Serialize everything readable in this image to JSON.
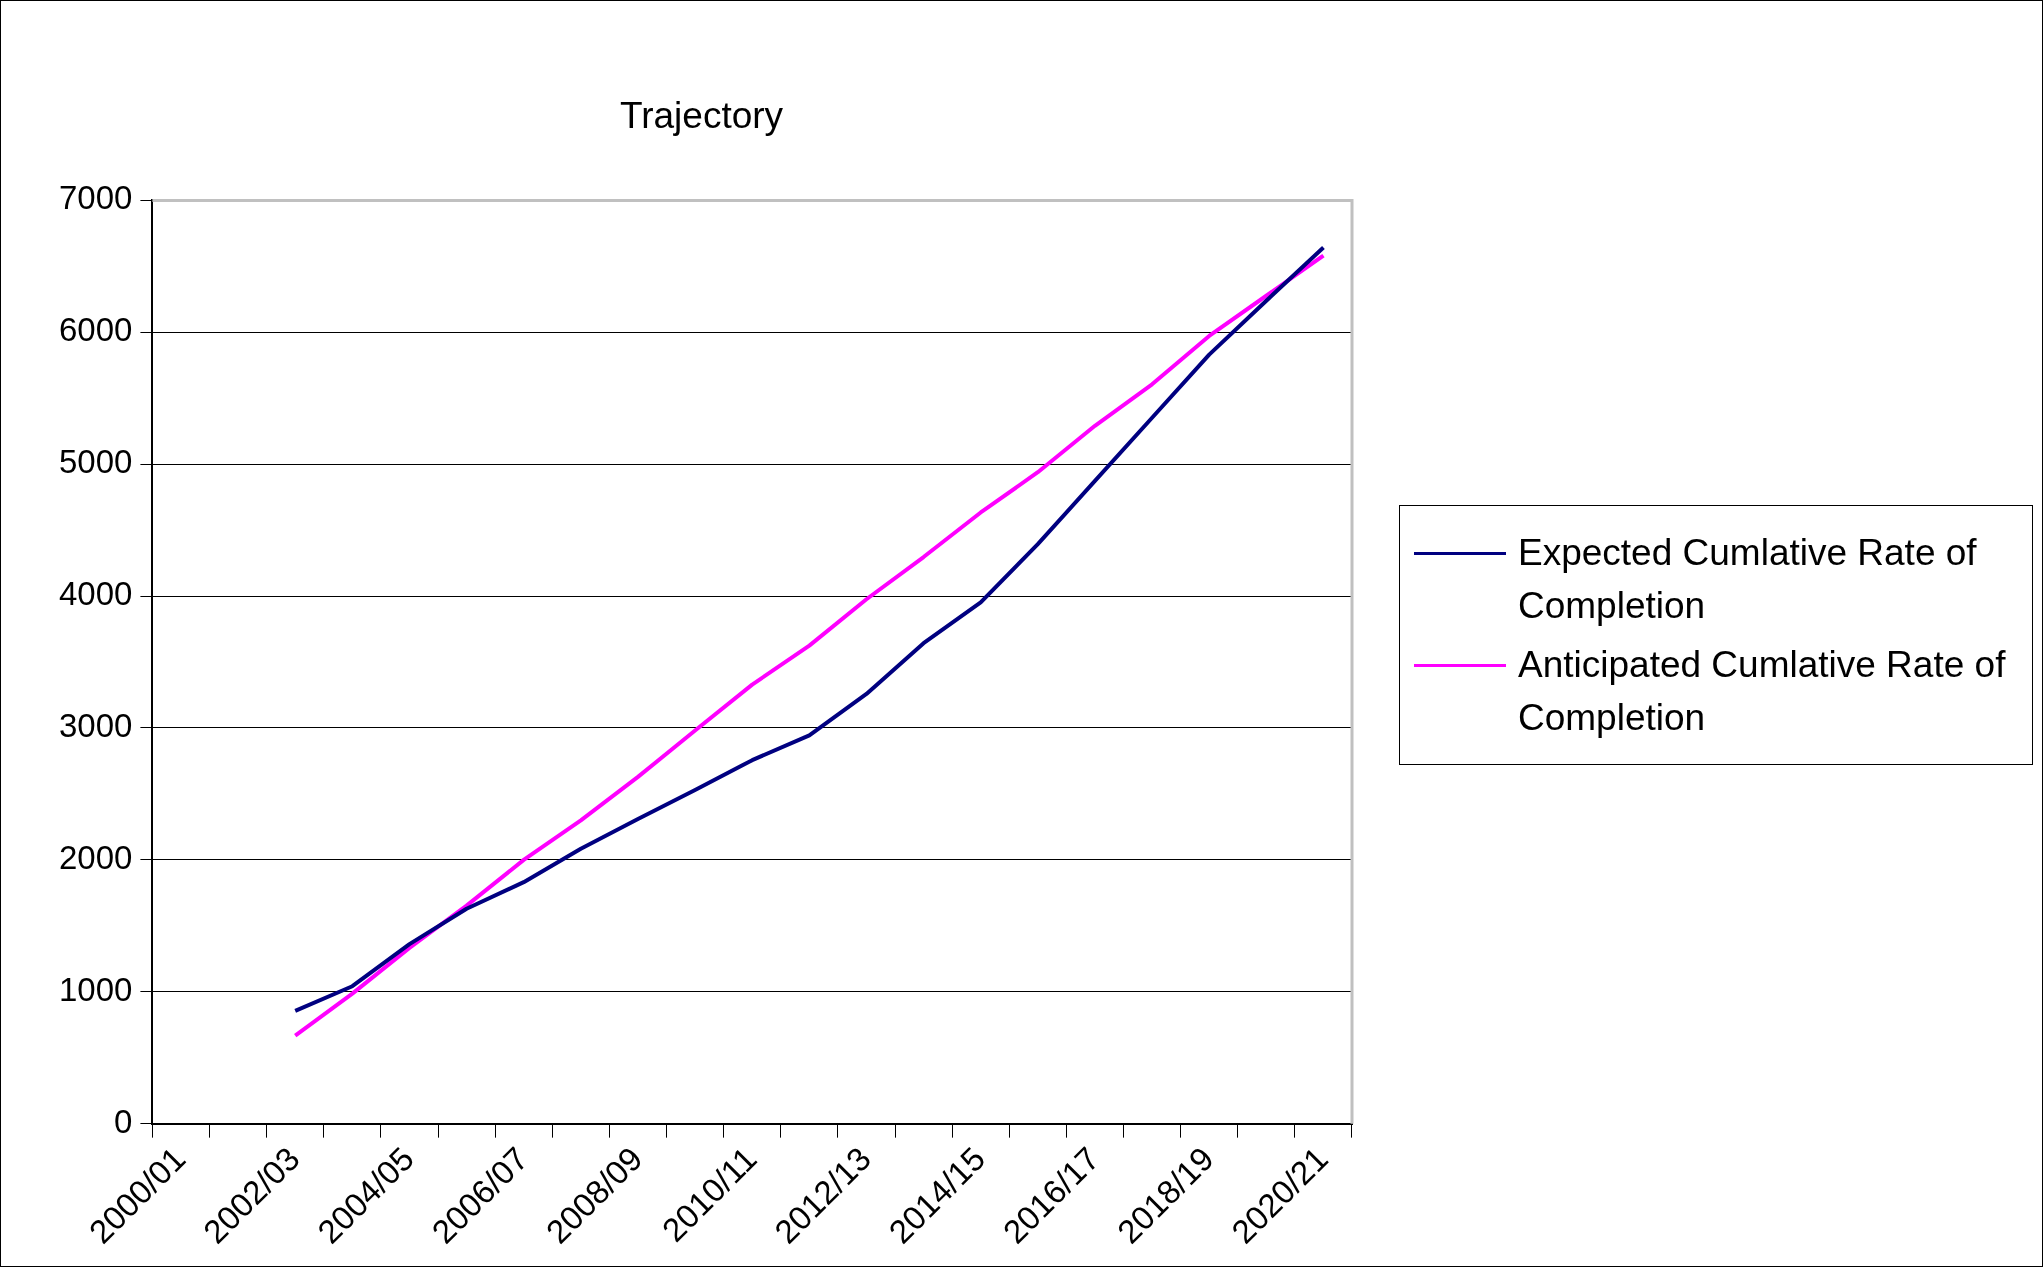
{
  "chart_data": {
    "type": "line",
    "title": "Trajectory",
    "categories": [
      "2000/01",
      null,
      "2002/03",
      null,
      "2004/05",
      null,
      "2006/07",
      null,
      "2008/09",
      null,
      "2010/11",
      null,
      "2012/13",
      null,
      "2014/15",
      null,
      "2016/17",
      null,
      "2018/19",
      null,
      "2020/21"
    ],
    "series": [
      {
        "name": "Expected Cumlative Rate of Completion",
        "color": "#000080",
        "values": [
          null,
          null,
          855,
          1042,
          1361,
          1629,
          1831,
          2085,
          2310,
          2530,
          2756,
          2944,
          3258,
          3643,
          3953,
          4394,
          4873,
          5352,
          5831,
          6239,
          6643
        ]
      },
      {
        "name": "Anticipated Cumlative Rate of Completion",
        "color": "#ff00ff",
        "values": [
          null,
          null,
          667,
          986,
          1333,
          1653,
          2000,
          2300,
          2629,
          2981,
          3329,
          3624,
          3976,
          4296,
          4634,
          4939,
          5291,
          5606,
          5972,
          6277,
          6582
        ]
      }
    ],
    "ylim": [
      0,
      7000
    ],
    "yticks": [
      0,
      1000,
      2000,
      3000,
      4000,
      5000,
      6000,
      7000
    ],
    "grid": "y",
    "legend": "right",
    "marker": "none",
    "line_style": "solid"
  }
}
